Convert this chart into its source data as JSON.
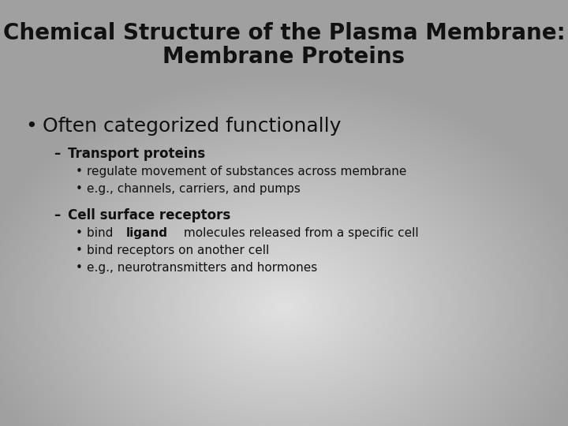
{
  "title_line1": "Chemical Structure of the Plasma Membrane:",
  "title_line2": "Membrane Proteins",
  "title_fontsize": 20,
  "title_fontweight": "bold",
  "text_color": "#111111",
  "bullet1": "Often categorized functionally",
  "bullet1_fontsize": 18,
  "sub1_label": "Transport proteins",
  "sub1_items": [
    "regulate movement of substances across membrane",
    "e.g., channels, carriers, and pumps"
  ],
  "sub2_label": "Cell surface receptors",
  "sub2_items_plain": [
    "bind receptors on another cell",
    "e.g., neurotransmitters and hormones"
  ],
  "sub_fontsize": 12,
  "item_fontsize": 11,
  "ligand_prefix": "bind ",
  "ligand_word": "ligand",
  "ligand_suffix": " molecules released from a specific cell"
}
